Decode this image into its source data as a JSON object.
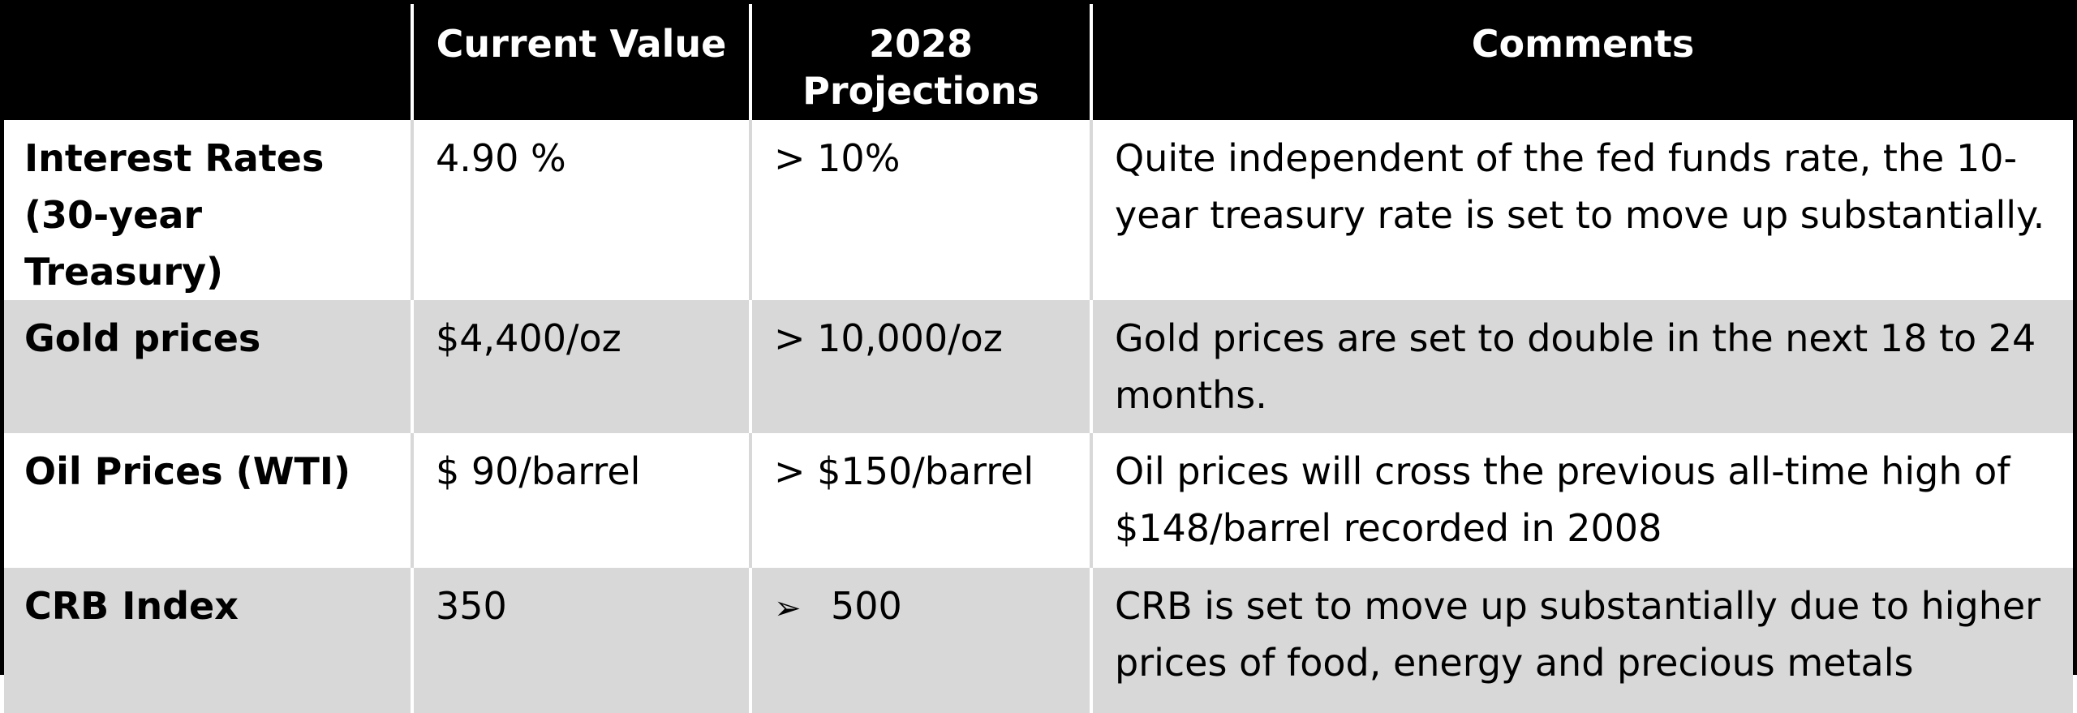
{
  "table": {
    "headers": [
      "",
      "Current Value",
      "2028\nProjections",
      "Comments"
    ],
    "header_2028_line1": "2028",
    "header_2028_line2": "Projections",
    "rows": [
      {
        "label_line1": "Interest Rates",
        "label_line2": "(30-year Treasury)",
        "current": "4.90 %",
        "projection": "> 10%",
        "comment_line1": "Quite independent of the fed funds rate, the 10-",
        "comment_line2": "year treasury rate is set to move up substantially."
      },
      {
        "label_line1": "Gold prices",
        "current": "$4,400/oz",
        "projection": "> 10,000/oz",
        "comment_line1": "Gold prices are set to double in the next 18 to 24",
        "comment_line2": "months."
      },
      {
        "label_line1": "Oil Prices (WTI)",
        "current": "$ 90/barrel",
        "projection": "> $150/barrel",
        "comment_line1": "Oil prices will cross the previous all-time high of",
        "comment_line2": "$148/barrel recorded in 2008"
      },
      {
        "label_line1": "CRB Index",
        "current": "350",
        "projection_bullet": "➢",
        "projection": "500",
        "comment_line1": "CRB is set to move up substantially due to higher",
        "comment_line2": "prices of food, energy and precious metals"
      }
    ]
  }
}
